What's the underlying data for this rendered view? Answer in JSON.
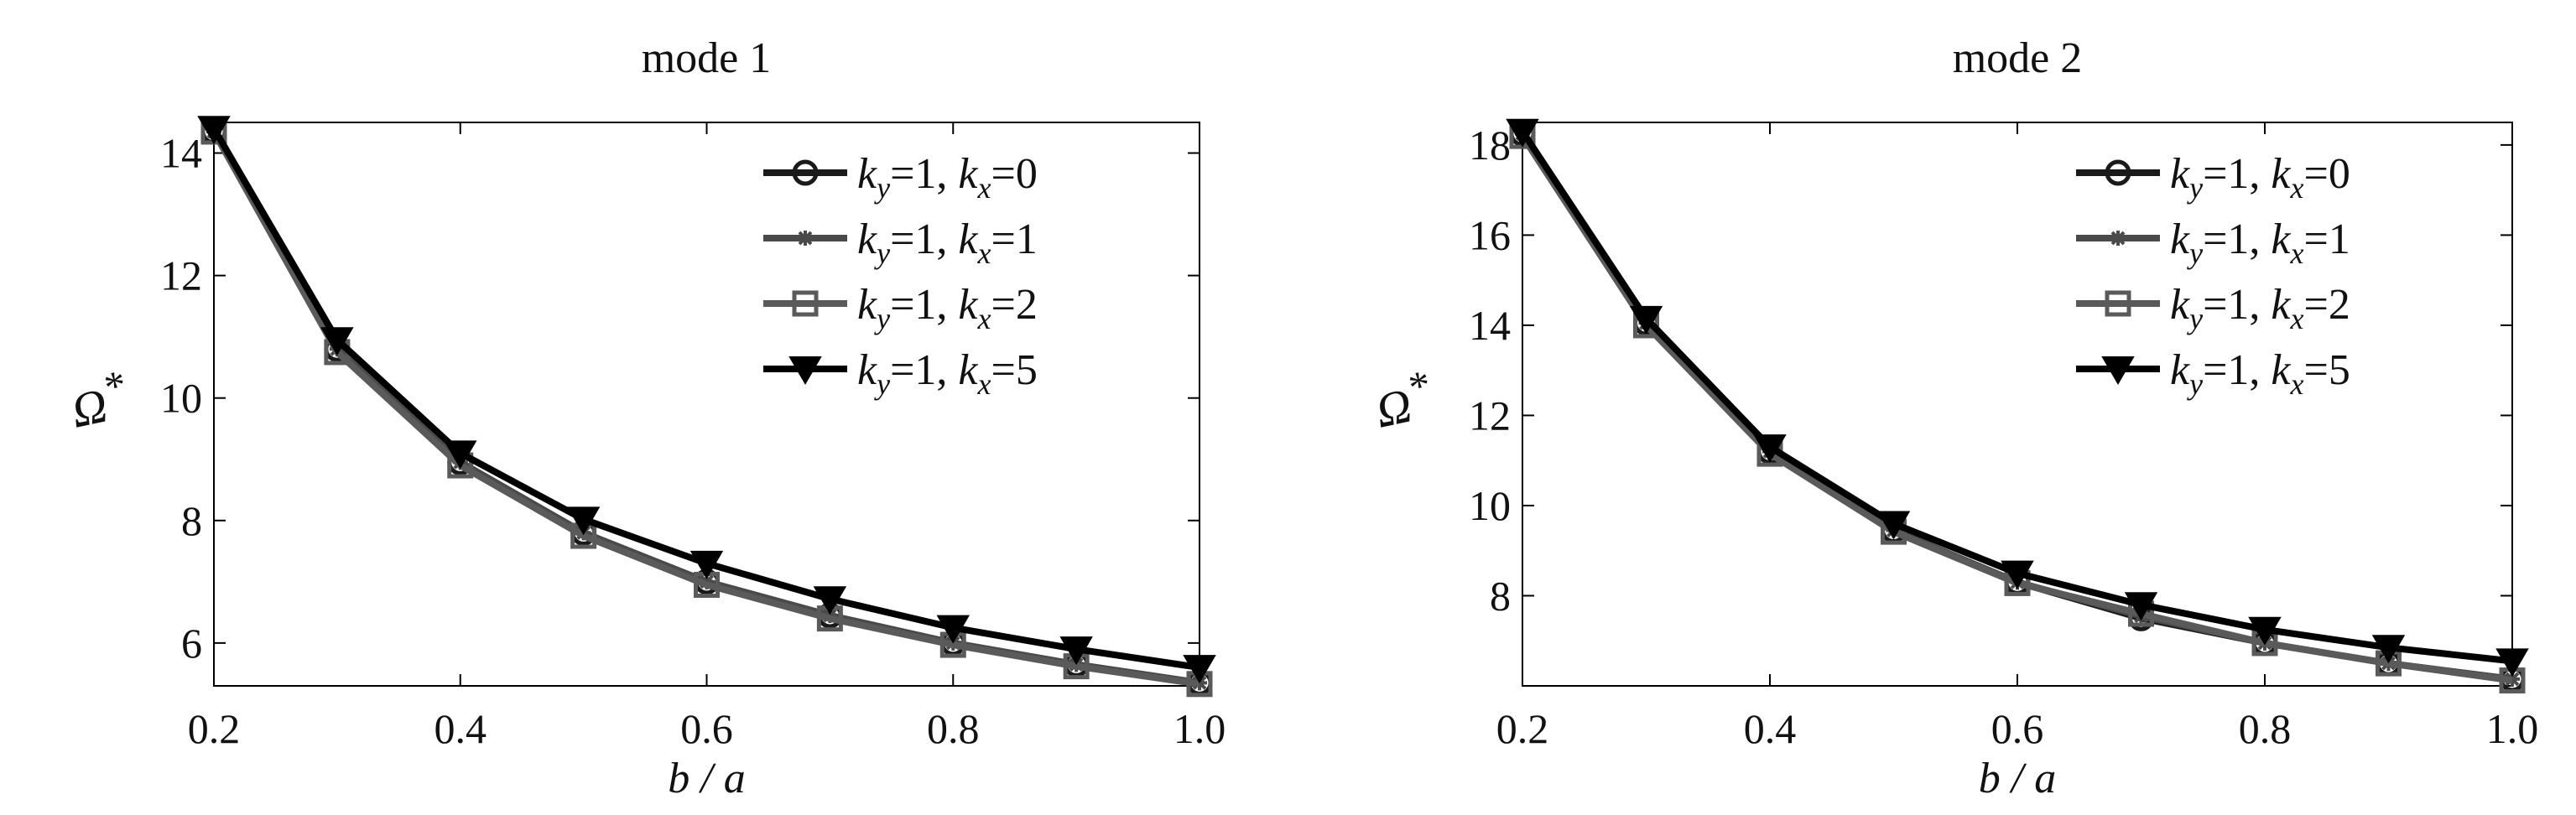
{
  "chart_data": [
    {
      "type": "line",
      "title": "mode 1",
      "xlabel": "b / a",
      "ylabel": "Ω*",
      "xlim": [
        0.2,
        1.0
      ],
      "ylim": [
        5.3,
        14.5
      ],
      "xticks": [
        0.2,
        0.4,
        0.6,
        0.8,
        1.0
      ],
      "xticklabels": [
        "0.2",
        "0.4",
        "0.6",
        "0.8",
        "1.0"
      ],
      "yticks": [
        6,
        8,
        10,
        12,
        14
      ],
      "yticklabels": [
        "6",
        "8",
        "10",
        "12",
        "14"
      ],
      "grid": false,
      "legend_position": "top-right",
      "x": [
        0.2,
        0.3,
        0.4,
        0.5,
        0.6,
        0.7,
        0.8,
        0.9,
        1.0
      ],
      "series": [
        {
          "name": "ky=1, kx=0",
          "ky": "1",
          "kx": "0",
          "color": "#1a1a1a",
          "marker": "circle",
          "values": [
            14.35,
            10.8,
            8.95,
            7.8,
            7.0,
            6.45,
            6.0,
            5.65,
            5.35
          ]
        },
        {
          "name": "ky=1, kx=1",
          "ky": "1",
          "kx": "1",
          "color": "#4a4a4a",
          "marker": "star",
          "values": [
            14.35,
            10.8,
            8.95,
            7.8,
            7.0,
            6.45,
            6.0,
            5.65,
            5.35
          ]
        },
        {
          "name": "ky=1, kx=2",
          "ky": "1",
          "kx": "2",
          "color": "#5a5a5a",
          "marker": "square",
          "values": [
            14.35,
            10.75,
            8.9,
            7.75,
            6.95,
            6.4,
            5.97,
            5.62,
            5.33
          ]
        },
        {
          "name": "ky=1, kx=5",
          "ky": "1",
          "kx": "5",
          "color": "#000000",
          "marker": "triangle-down",
          "values": [
            14.4,
            10.95,
            9.1,
            8.02,
            7.3,
            6.72,
            6.25,
            5.9,
            5.6
          ]
        }
      ]
    },
    {
      "type": "line",
      "title": "mode 2",
      "xlabel": "b / a",
      "ylabel": "Ω*",
      "xlim": [
        0.2,
        1.0
      ],
      "ylim": [
        6.0,
        18.5
      ],
      "xticks": [
        0.2,
        0.4,
        0.6,
        0.8,
        1.0
      ],
      "xticklabels": [
        "0.2",
        "0.4",
        "0.6",
        "0.8",
        "1.0"
      ],
      "yticks": [
        8,
        10,
        12,
        14,
        16,
        18
      ],
      "yticklabels": [
        "8",
        "10",
        "12",
        "14",
        "16",
        "18"
      ],
      "grid": false,
      "legend_position": "top-right",
      "x": [
        0.2,
        0.3,
        0.4,
        0.5,
        0.6,
        0.7,
        0.8,
        0.9,
        1.0
      ],
      "series": [
        {
          "name": "ky=1, kx=0",
          "ky": "1",
          "kx": "0",
          "color": "#1a1a1a",
          "marker": "circle",
          "values": [
            18.25,
            14.05,
            11.2,
            9.45,
            8.3,
            7.5,
            6.95,
            6.5,
            6.15
          ]
        },
        {
          "name": "ky=1, kx=1",
          "ky": "1",
          "kx": "1",
          "color": "#4a4a4a",
          "marker": "star",
          "values": [
            18.25,
            14.05,
            11.2,
            9.45,
            8.3,
            7.55,
            6.95,
            6.5,
            6.15
          ]
        },
        {
          "name": "ky=1, kx=2",
          "ky": "1",
          "kx": "2",
          "color": "#5a5a5a",
          "marker": "square",
          "values": [
            18.2,
            14.0,
            11.15,
            9.42,
            8.28,
            7.6,
            6.95,
            6.5,
            6.12
          ]
        },
        {
          "name": "ky=1, kx=5",
          "ky": "1",
          "kx": "5",
          "color": "#000000",
          "marker": "triangle-down",
          "values": [
            18.3,
            14.15,
            11.3,
            9.6,
            8.5,
            7.8,
            7.25,
            6.85,
            6.55
          ]
        }
      ]
    }
  ]
}
